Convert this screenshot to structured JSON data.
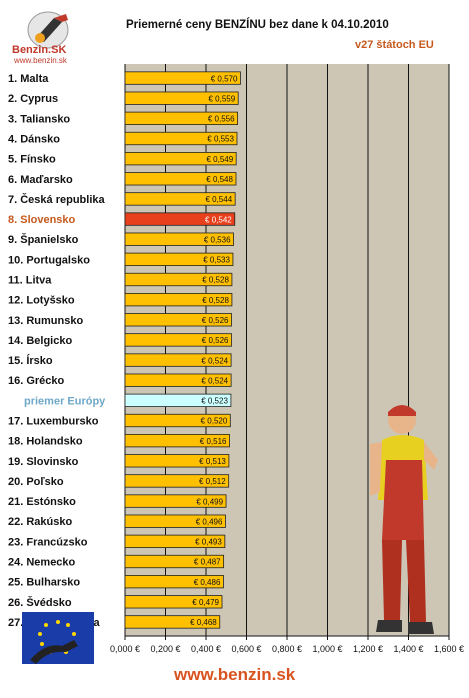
{
  "header": {
    "title": "Priemerné ceny BENZÍNU bez dane k 04.10.2010",
    "subtitle": "v27 štátoch EU",
    "logo_text": "Benzin.SK",
    "logo_url": "www.benzin.sk"
  },
  "footer": {
    "url": "www.benzin.sk"
  },
  "colors": {
    "bar": "#ffc000",
    "highlight_bar": "#e8401c",
    "average_bar": "#ccffff",
    "plot_bg": "#cdc6b5",
    "highlight_label": "#c65a1e",
    "average_label": "#6fa8c8"
  },
  "icons": {
    "flag": "eu-flag-fuel-nozzle-icon",
    "mascot": "gas-station-attendant-figure"
  },
  "chart_data": {
    "type": "bar",
    "orientation": "horizontal",
    "categories": [
      "1. Malta",
      "2. Cyprus",
      "3. Taliansko",
      "4. Dánsko",
      "5. Fínsko",
      "6. Maďarsko",
      "7. Česká republika",
      "8. Slovensko",
      "9. Španielsko",
      "10. Portugalsko",
      "11. Litva",
      "12. Lotyšsko",
      "13. Rumunsko",
      "14. Belgicko",
      "15. Írsko",
      "16. Grécko",
      "priemer Európy",
      "17. Luxembursko",
      "18. Holandsko",
      "19. Slovinsko",
      "20. Poľsko",
      "21. Estónsko",
      "22. Rakúsko",
      "23. Francúzsko",
      "24. Nemecko",
      "25. Bulharsko",
      "26. Švédsko",
      "27. Veľká Británia"
    ],
    "values": [
      0.57,
      0.559,
      0.556,
      0.553,
      0.549,
      0.548,
      0.544,
      0.542,
      0.536,
      0.533,
      0.528,
      0.528,
      0.526,
      0.526,
      0.524,
      0.524,
      0.523,
      0.52,
      0.516,
      0.513,
      0.512,
      0.499,
      0.496,
      0.493,
      0.487,
      0.486,
      0.479,
      0.468
    ],
    "value_labels": [
      "€ 0,570",
      "€ 0,559",
      "€ 0,556",
      "€ 0,553",
      "€ 0,549",
      "€ 0,548",
      "€ 0,544",
      "€ 0,542",
      "€ 0,536",
      "€ 0,533",
      "€ 0,528",
      "€ 0,528",
      "€ 0,526",
      "€ 0,526",
      "€ 0,524",
      "€ 0,524",
      "€ 0,523",
      "€ 0,520",
      "€ 0,516",
      "€ 0,513",
      "€ 0,512",
      "€ 0,499",
      "€ 0,496",
      "€ 0,493",
      "€ 0,487",
      "€ 0,486",
      "€ 0,479",
      "€ 0,468"
    ],
    "highlight_index": 7,
    "average_index": 16,
    "xlim": [
      0,
      1.6
    ],
    "x_ticks": [
      "0,000 €",
      "0,200 €",
      "0,400 €",
      "0,600 €",
      "0,800 €",
      "1,000 €",
      "1,200 €",
      "1,400 €",
      "1,600 €"
    ],
    "grid": true
  }
}
